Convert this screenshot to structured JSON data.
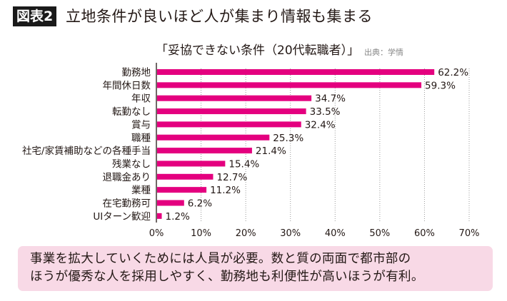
{
  "header": {
    "badge": "図表2",
    "title": "立地条件が良いほど人が集まり情報も集まる"
  },
  "chart_data": {
    "type": "bar",
    "orientation": "horizontal",
    "title": "「妥協できない条件（20代転職者）」",
    "source": "出典：学情",
    "categories": [
      "勤務地",
      "年間休日数",
      "年収",
      "転勤なし",
      "賞与",
      "職種",
      "社宅/家賃補助などの各種手当",
      "残業なし",
      "退職金あり",
      "業種",
      "在宅勤務可",
      "UIターン歓迎"
    ],
    "values": [
      62.2,
      59.3,
      34.7,
      33.5,
      32.4,
      25.3,
      21.4,
      15.4,
      12.7,
      11.2,
      6.2,
      1.2
    ],
    "value_labels": [
      "62.2%",
      "59.3%",
      "34.7%",
      "33.5%",
      "32.4%",
      "25.3%",
      "21.4%",
      "15.4%",
      "12.7%",
      "11.2%",
      "6.2%",
      "1.2%"
    ],
    "xlim": [
      0,
      70
    ],
    "xticks": [
      "0%",
      "10%",
      "20%",
      "30%",
      "40%",
      "50%",
      "60%",
      "70%"
    ],
    "xlabel": "",
    "ylabel": "",
    "grid": "vertical dotted",
    "bar_color": "#e4007f"
  },
  "note": {
    "line1": "事業を拡大していくためには人員が必要。数と質の両面で都市部の",
    "line2": "ほうが優秀な人を採用しやすく、勤務地も利便性が高いほうが有利。"
  }
}
